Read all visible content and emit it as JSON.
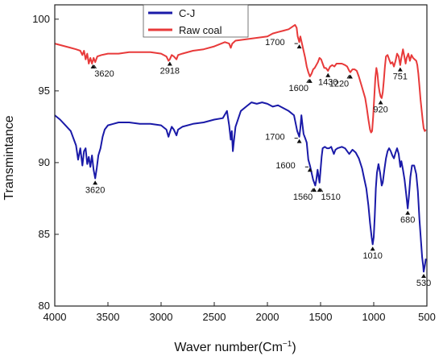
{
  "chart_data": {
    "type": "line",
    "xlabel": "Waver number(Cm",
    "xlabel_sup": "−1",
    "ylabel": "Transmintance",
    "xlim": [
      4000,
      500
    ],
    "ylim": [
      80,
      101
    ],
    "x_ticks": [
      4000,
      3500,
      3000,
      2500,
      2000,
      1500,
      1000,
      500
    ],
    "y_ticks": [
      80,
      85,
      90,
      95,
      100
    ],
    "legend_position": "top-left",
    "series": [
      {
        "name": "C-J",
        "color": "#1a1aa8",
        "points": [
          [
            4000,
            93.3
          ],
          [
            3950,
            93.0
          ],
          [
            3900,
            92.6
          ],
          [
            3850,
            92.2
          ],
          [
            3800,
            91.2
          ],
          [
            3780,
            90.2
          ],
          [
            3760,
            91.0
          ],
          [
            3740,
            89.8
          ],
          [
            3725,
            90.8
          ],
          [
            3710,
            91.0
          ],
          [
            3695,
            89.9
          ],
          [
            3680,
            90.4
          ],
          [
            3665,
            89.7
          ],
          [
            3650,
            90.5
          ],
          [
            3635,
            89.5
          ],
          [
            3620,
            88.9
          ],
          [
            3605,
            89.6
          ],
          [
            3590,
            90.5
          ],
          [
            3570,
            91.0
          ],
          [
            3550,
            91.8
          ],
          [
            3530,
            92.3
          ],
          [
            3500,
            92.6
          ],
          [
            3450,
            92.7
          ],
          [
            3400,
            92.8
          ],
          [
            3300,
            92.8
          ],
          [
            3200,
            92.7
          ],
          [
            3100,
            92.7
          ],
          [
            3000,
            92.6
          ],
          [
            2950,
            92.3
          ],
          [
            2930,
            91.8
          ],
          [
            2918,
            92.1
          ],
          [
            2900,
            92.5
          ],
          [
            2880,
            92.3
          ],
          [
            2855,
            91.9
          ],
          [
            2840,
            92.3
          ],
          [
            2800,
            92.5
          ],
          [
            2700,
            92.7
          ],
          [
            2600,
            92.8
          ],
          [
            2500,
            93.0
          ],
          [
            2420,
            93.1
          ],
          [
            2380,
            93.6
          ],
          [
            2360,
            92.6
          ],
          [
            2345,
            91.6
          ],
          [
            2335,
            92.2
          ],
          [
            2325,
            90.8
          ],
          [
            2315,
            91.5
          ],
          [
            2300,
            92.5
          ],
          [
            2250,
            93.6
          ],
          [
            2200,
            93.9
          ],
          [
            2150,
            94.2
          ],
          [
            2100,
            94.1
          ],
          [
            2050,
            94.2
          ],
          [
            2000,
            94.1
          ],
          [
            1950,
            93.9
          ],
          [
            1900,
            94.0
          ],
          [
            1850,
            93.8
          ],
          [
            1800,
            93.6
          ],
          [
            1750,
            93.3
          ],
          [
            1720,
            92.2
          ],
          [
            1700,
            91.8
          ],
          [
            1690,
            92.4
          ],
          [
            1680,
            93.3
          ],
          [
            1670,
            92.6
          ],
          [
            1660,
            92.0
          ],
          [
            1645,
            91.7
          ],
          [
            1630,
            91.4
          ],
          [
            1615,
            90.2
          ],
          [
            1600,
            89.8
          ],
          [
            1585,
            89.3
          ],
          [
            1570,
            88.8
          ],
          [
            1560,
            88.6
          ],
          [
            1550,
            88.4
          ],
          [
            1540,
            88.8
          ],
          [
            1528,
            89.5
          ],
          [
            1518,
            89.0
          ],
          [
            1510,
            88.6
          ],
          [
            1500,
            89.5
          ],
          [
            1490,
            90.4
          ],
          [
            1480,
            91.0
          ],
          [
            1460,
            91.1
          ],
          [
            1440,
            91.0
          ],
          [
            1420,
            91.0
          ],
          [
            1400,
            91.1
          ],
          [
            1375,
            90.6
          ],
          [
            1360,
            90.9
          ],
          [
            1340,
            91.0
          ],
          [
            1300,
            91.1
          ],
          [
            1270,
            91.0
          ],
          [
            1250,
            90.8
          ],
          [
            1230,
            90.6
          ],
          [
            1200,
            90.9
          ],
          [
            1170,
            90.7
          ],
          [
            1140,
            90.3
          ],
          [
            1110,
            89.6
          ],
          [
            1090,
            88.9
          ],
          [
            1070,
            88.2
          ],
          [
            1050,
            87.0
          ],
          [
            1035,
            85.8
          ],
          [
            1020,
            84.8
          ],
          [
            1010,
            84.3
          ],
          [
            1000,
            84.8
          ],
          [
            990,
            86.3
          ],
          [
            980,
            88.2
          ],
          [
            970,
            89.3
          ],
          [
            955,
            89.9
          ],
          [
            940,
            89.3
          ],
          [
            925,
            88.4
          ],
          [
            915,
            88.6
          ],
          [
            900,
            89.5
          ],
          [
            885,
            90.3
          ],
          [
            870,
            90.8
          ],
          [
            855,
            91.0
          ],
          [
            840,
            90.8
          ],
          [
            825,
            90.5
          ],
          [
            810,
            90.3
          ],
          [
            795,
            90.7
          ],
          [
            780,
            91.0
          ],
          [
            765,
            90.6
          ],
          [
            750,
            89.7
          ],
          [
            740,
            90.1
          ],
          [
            725,
            89.5
          ],
          [
            710,
            88.8
          ],
          [
            695,
            87.8
          ],
          [
            680,
            86.8
          ],
          [
            670,
            87.6
          ],
          [
            655,
            89.0
          ],
          [
            640,
            89.8
          ],
          [
            620,
            89.8
          ],
          [
            600,
            89.2
          ],
          [
            585,
            88.0
          ],
          [
            570,
            86.0
          ],
          [
            555,
            84.5
          ],
          [
            545,
            83.4
          ],
          [
            535,
            82.8
          ],
          [
            530,
            82.4
          ],
          [
            520,
            82.8
          ],
          [
            510,
            83.3
          ]
        ]
      },
      {
        "name": "Raw coal",
        "color": "#e83a3a",
        "points": [
          [
            4000,
            98.3
          ],
          [
            3950,
            98.2
          ],
          [
            3900,
            98.1
          ],
          [
            3850,
            98.0
          ],
          [
            3800,
            97.9
          ],
          [
            3760,
            97.8
          ],
          [
            3740,
            97.5
          ],
          [
            3725,
            97.8
          ],
          [
            3710,
            97.2
          ],
          [
            3695,
            97.6
          ],
          [
            3680,
            96.9
          ],
          [
            3665,
            97.3
          ],
          [
            3650,
            96.9
          ],
          [
            3635,
            97.3
          ],
          [
            3620,
            97.0
          ],
          [
            3600,
            97.4
          ],
          [
            3560,
            97.5
          ],
          [
            3500,
            97.6
          ],
          [
            3400,
            97.6
          ],
          [
            3300,
            97.7
          ],
          [
            3200,
            97.7
          ],
          [
            3100,
            97.7
          ],
          [
            3000,
            97.6
          ],
          [
            2950,
            97.4
          ],
          [
            2930,
            97.1
          ],
          [
            2918,
            97.2
          ],
          [
            2900,
            97.5
          ],
          [
            2880,
            97.4
          ],
          [
            2855,
            97.2
          ],
          [
            2840,
            97.5
          ],
          [
            2800,
            97.6
          ],
          [
            2700,
            97.8
          ],
          [
            2600,
            97.9
          ],
          [
            2500,
            98.1
          ],
          [
            2400,
            98.4
          ],
          [
            2360,
            98.3
          ],
          [
            2345,
            98.0
          ],
          [
            2330,
            98.3
          ],
          [
            2300,
            98.5
          ],
          [
            2200,
            98.6
          ],
          [
            2100,
            98.7
          ],
          [
            2000,
            98.8
          ],
          [
            1950,
            99.0
          ],
          [
            1900,
            99.1
          ],
          [
            1850,
            99.2
          ],
          [
            1800,
            99.3
          ],
          [
            1760,
            99.5
          ],
          [
            1740,
            99.6
          ],
          [
            1725,
            99.4
          ],
          [
            1715,
            98.8
          ],
          [
            1700,
            98.4
          ],
          [
            1690,
            98.8
          ],
          [
            1675,
            98.3
          ],
          [
            1660,
            97.8
          ],
          [
            1645,
            97.3
          ],
          [
            1630,
            96.7
          ],
          [
            1615,
            96.3
          ],
          [
            1600,
            96.0
          ],
          [
            1585,
            96.2
          ],
          [
            1570,
            96.5
          ],
          [
            1555,
            96.6
          ],
          [
            1540,
            96.8
          ],
          [
            1525,
            97.0
          ],
          [
            1510,
            97.3
          ],
          [
            1495,
            97.2
          ],
          [
            1480,
            96.9
          ],
          [
            1465,
            96.6
          ],
          [
            1450,
            96.6
          ],
          [
            1430,
            96.4
          ],
          [
            1410,
            96.7
          ],
          [
            1390,
            96.8
          ],
          [
            1370,
            96.7
          ],
          [
            1350,
            96.9
          ],
          [
            1330,
            96.9
          ],
          [
            1300,
            96.9
          ],
          [
            1270,
            96.8
          ],
          [
            1250,
            96.7
          ],
          [
            1230,
            96.4
          ],
          [
            1220,
            96.3
          ],
          [
            1200,
            96.5
          ],
          [
            1180,
            96.5
          ],
          [
            1160,
            96.4
          ],
          [
            1140,
            96.0
          ],
          [
            1120,
            95.5
          ],
          [
            1100,
            95.0
          ],
          [
            1080,
            94.5
          ],
          [
            1065,
            93.8
          ],
          [
            1050,
            93.0
          ],
          [
            1035,
            92.3
          ],
          [
            1025,
            92.1
          ],
          [
            1015,
            92.2
          ],
          [
            1005,
            93.2
          ],
          [
            995,
            94.6
          ],
          [
            985,
            95.9
          ],
          [
            975,
            96.6
          ],
          [
            965,
            96.2
          ],
          [
            955,
            95.4
          ],
          [
            945,
            94.9
          ],
          [
            935,
            94.6
          ],
          [
            925,
            94.5
          ],
          [
            915,
            94.9
          ],
          [
            905,
            95.7
          ],
          [
            895,
            96.7
          ],
          [
            885,
            97.4
          ],
          [
            870,
            97.5
          ],
          [
            855,
            97.2
          ],
          [
            840,
            96.9
          ],
          [
            825,
            97.0
          ],
          [
            810,
            96.7
          ],
          [
            795,
            97.1
          ],
          [
            780,
            97.6
          ],
          [
            765,
            97.4
          ],
          [
            751,
            96.8
          ],
          [
            740,
            97.3
          ],
          [
            725,
            97.9
          ],
          [
            712,
            97.4
          ],
          [
            700,
            96.9
          ],
          [
            690,
            97.3
          ],
          [
            675,
            97.6
          ],
          [
            660,
            97.1
          ],
          [
            645,
            97.5
          ],
          [
            630,
            97.3
          ],
          [
            615,
            97.2
          ],
          [
            600,
            97.1
          ],
          [
            590,
            96.8
          ],
          [
            580,
            96.2
          ],
          [
            570,
            95.3
          ],
          [
            560,
            94.4
          ],
          [
            550,
            93.7
          ],
          [
            540,
            93.0
          ],
          [
            530,
            92.4
          ],
          [
            520,
            92.2
          ],
          [
            510,
            92.3
          ]
        ]
      }
    ],
    "annotations": [
      {
        "text": "3620",
        "series": "Raw coal",
        "x": 3640,
        "y": 96.9,
        "pos": "below-right"
      },
      {
        "text": "2918",
        "series": "Raw coal",
        "x": 2918,
        "y": 97.1,
        "pos": "below"
      },
      {
        "text": "1700",
        "series": "Raw coal",
        "x": 1700,
        "y": 98.3,
        "pos": "left"
      },
      {
        "text": "1600",
        "series": "Raw coal",
        "x": 1600,
        "y": 95.9,
        "pos": "below-left"
      },
      {
        "text": "1430",
        "series": "Raw coal",
        "x": 1430,
        "y": 96.3,
        "pos": "below"
      },
      {
        "text": "1220",
        "series": "Raw coal",
        "x": 1220,
        "y": 96.2,
        "pos": "below-left"
      },
      {
        "text": "920",
        "series": "Raw coal",
        "x": 935,
        "y": 94.4,
        "pos": "below"
      },
      {
        "text": "751",
        "series": "Raw coal",
        "x": 751,
        "y": 96.7,
        "pos": "below"
      },
      {
        "text": "3620",
        "series": "C-J",
        "x": 3620,
        "y": 88.8,
        "pos": "below"
      },
      {
        "text": "1700",
        "series": "C-J",
        "x": 1700,
        "y": 91.7,
        "pos": "left"
      },
      {
        "text": "1600",
        "series": "C-J",
        "x": 1600,
        "y": 89.7,
        "pos": "left"
      },
      {
        "text": "1560",
        "series": "C-J",
        "x": 1560,
        "y": 88.3,
        "pos": "below-left"
      },
      {
        "text": "1510",
        "series": "C-J",
        "x": 1510,
        "y": 88.3,
        "pos": "below-right"
      },
      {
        "text": "1010",
        "series": "C-J",
        "x": 1010,
        "y": 84.2,
        "pos": "below"
      },
      {
        "text": "680",
        "series": "C-J",
        "x": 680,
        "y": 86.7,
        "pos": "below"
      },
      {
        "text": "530",
        "series": "C-J",
        "x": 530,
        "y": 82.3,
        "pos": "below"
      }
    ]
  }
}
